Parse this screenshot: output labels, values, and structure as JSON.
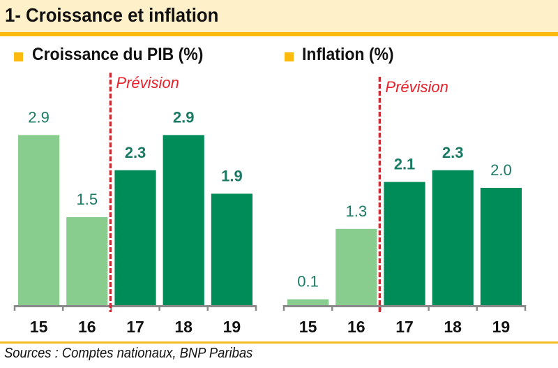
{
  "header": {
    "title": "1- Croissance et inflation"
  },
  "colors": {
    "header_bg": "#FEF0C9",
    "accent": "#FDBA0E",
    "actual": "#88CC8E",
    "forecast": "#008C58",
    "label": "#1A7A64",
    "forecast_line": "#E8202A"
  },
  "footer": {
    "source": "Sources : Comptes nationaux, BNP Paribas"
  },
  "chart_data": [
    {
      "type": "bar",
      "title": "Croissance du PIB (%)",
      "categories": [
        "15",
        "16",
        "17",
        "18",
        "19"
      ],
      "values": [
        2.9,
        1.5,
        2.3,
        2.9,
        1.9
      ],
      "labels": [
        "2.9",
        "1.5",
        "2.3",
        "2.9",
        "1.9"
      ],
      "bold_labels": [
        false,
        false,
        true,
        true,
        true
      ],
      "forecast": [
        false,
        false,
        true,
        true,
        true
      ],
      "forecast_annotation": "Prévision",
      "xlabel": "",
      "ylabel": "",
      "ylim": [
        0,
        3.0
      ],
      "grid": false,
      "legend": "none"
    },
    {
      "type": "bar",
      "title": "Inflation (%)",
      "categories": [
        "15",
        "16",
        "17",
        "18",
        "19"
      ],
      "values": [
        0.1,
        1.3,
        2.1,
        2.3,
        2.0
      ],
      "labels": [
        "0.1",
        "1.3",
        "2.1",
        "2.3",
        "2.0"
      ],
      "bold_labels": [
        false,
        false,
        true,
        true,
        false
      ],
      "forecast": [
        false,
        false,
        true,
        true,
        true
      ],
      "forecast_annotation": "Prévision",
      "xlabel": "",
      "ylabel": "",
      "ylim": [
        0,
        3.0
      ],
      "grid": false,
      "legend": "none"
    }
  ]
}
